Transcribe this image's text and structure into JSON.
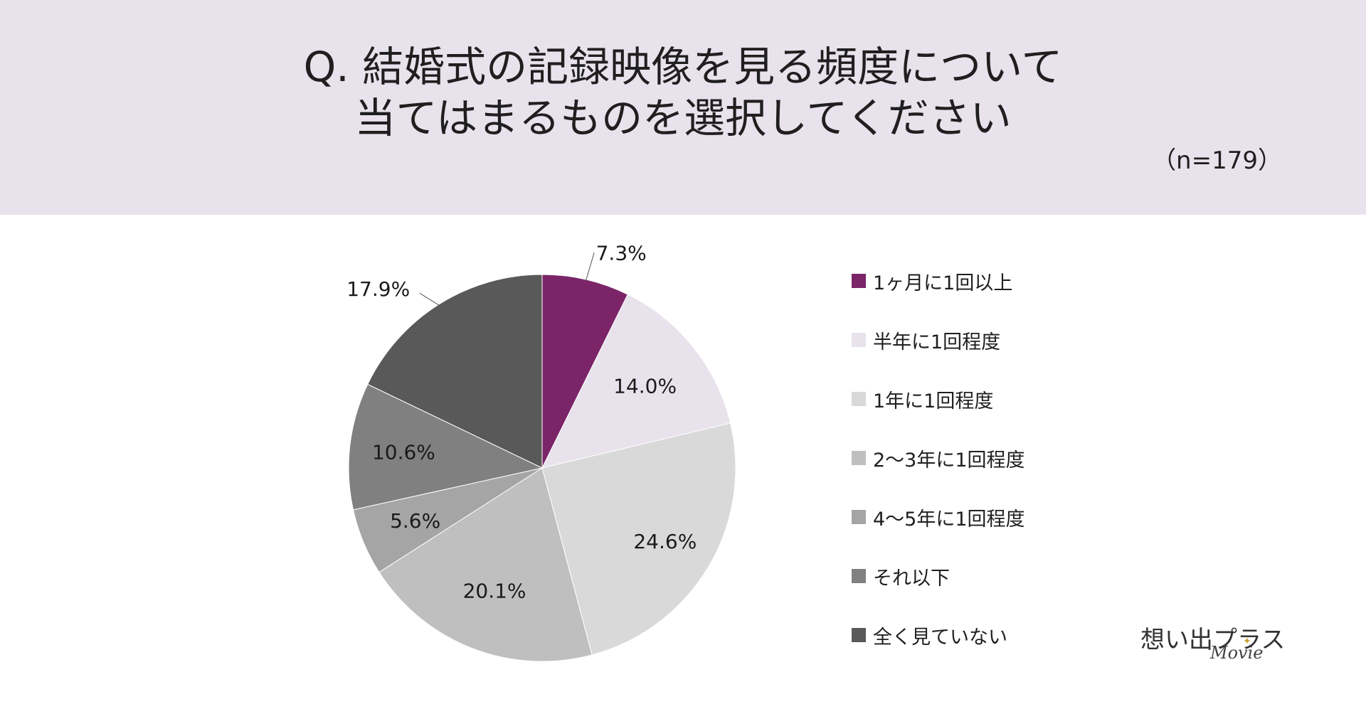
{
  "header": {
    "title_line1": "Q. 結婚式の記録映像を見る頻度について",
    "title_line2": "当てはまるものを選択してください",
    "sample_size": "（n=179）"
  },
  "chart_data": {
    "type": "pie",
    "title": "Q. 結婚式の記録映像を見る頻度について 当てはまるものを選択してください",
    "legend_position": "right",
    "categories": [
      "1ヶ月に1回以上",
      "半年に1回程度",
      "1年に1回程度",
      "2～3年に1回程度",
      "4～5年に1回程度",
      "それ以下",
      "全く見ていない"
    ],
    "values": [
      7.3,
      14.0,
      24.6,
      20.1,
      5.6,
      10.6,
      17.9
    ],
    "labels": [
      "7.3%",
      "14.0%",
      "24.6%",
      "20.1%",
      "5.6%",
      "10.6%",
      "17.9%"
    ],
    "colors": [
      "#7b2568",
      "#e8e2ec",
      "#d9d9d9",
      "#bfbfbf",
      "#a5a5a5",
      "#808080",
      "#595959"
    ]
  },
  "logo": {
    "main": "想い出プラス",
    "sub": "Movie"
  }
}
